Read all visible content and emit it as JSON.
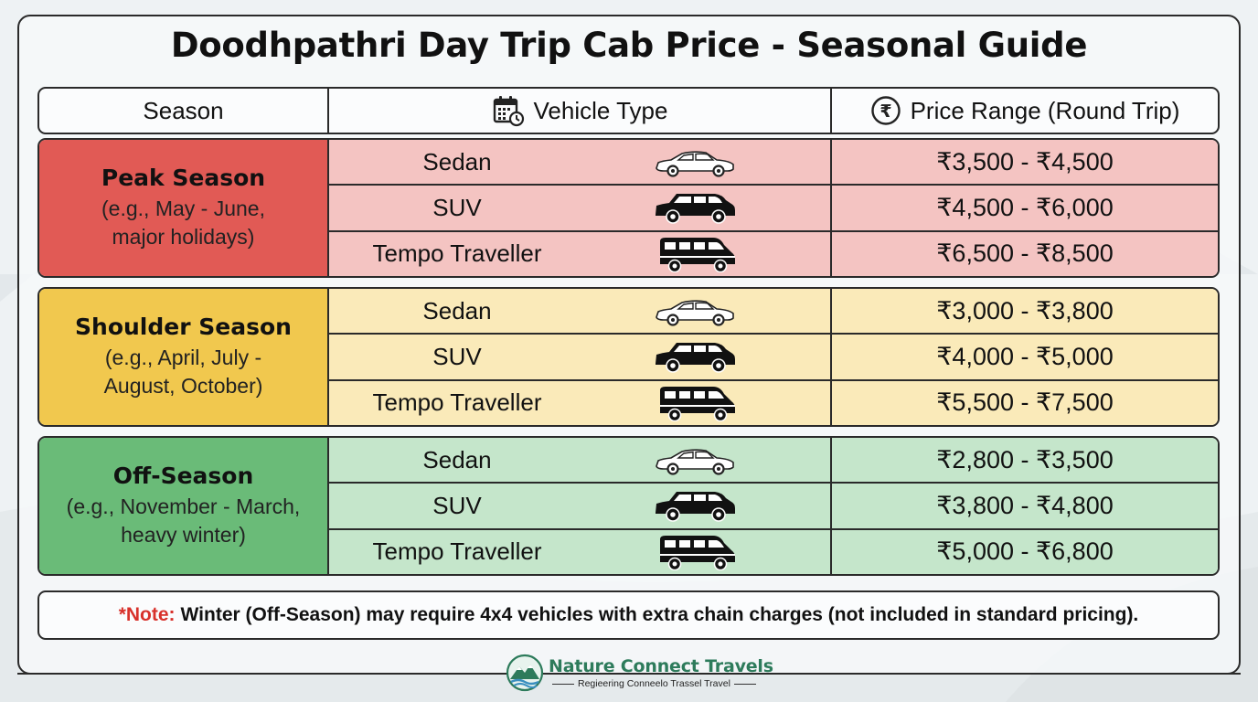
{
  "title": "Doodhpathri Day Trip Cab Price - Seasonal Guide",
  "header": {
    "season": "Season",
    "vehicle_type": "Vehicle Type",
    "vehicle_icon": "calendar-icon",
    "price_range": "Price Range (Round Trip)",
    "price_icon": "rupee-icon",
    "price_icon_glyph": "₹"
  },
  "seasons": [
    {
      "name": "Peak Season",
      "desc_line1": "(e.g., May - June,",
      "desc_line2": "major holidays)",
      "color": "#e15a55",
      "row_color": "#f4c4c2",
      "rows": [
        {
          "vehicle": "Sedan",
          "icon": "sedan-icon",
          "price": "₹3,500 - ₹4,500"
        },
        {
          "vehicle": "SUV",
          "icon": "suv-icon",
          "price": "₹4,500 - ₹6,000"
        },
        {
          "vehicle": "Tempo Traveller",
          "icon": "van-icon",
          "price": "₹6,500 - ₹8,500"
        }
      ]
    },
    {
      "name": "Shoulder Season",
      "desc_line1": "(e.g., April, July -",
      "desc_line2": "August, October)",
      "color": "#f1c84e",
      "row_color": "#faeab9",
      "rows": [
        {
          "vehicle": "Sedan",
          "icon": "sedan-icon",
          "price": "₹3,000 - ₹3,800"
        },
        {
          "vehicle": "SUV",
          "icon": "suv-icon",
          "price": "₹4,000 - ₹5,000"
        },
        {
          "vehicle": "Tempo Traveller",
          "icon": "van-icon",
          "price": "₹5,500 - ₹7,500"
        }
      ]
    },
    {
      "name": "Off-Season",
      "desc_line1": "(e.g., November - March,",
      "desc_line2": "heavy winter)",
      "color": "#6abb78",
      "row_color": "#c5e6cb",
      "rows": [
        {
          "vehicle": "Sedan",
          "icon": "sedan-icon",
          "price": "₹2,800 - ₹3,500"
        },
        {
          "vehicle": "SUV",
          "icon": "suv-icon",
          "price": "₹3,800 - ₹4,800"
        },
        {
          "vehicle": "Tempo Traveller",
          "icon": "van-icon",
          "price": "₹5,000 - ₹6,800"
        }
      ]
    }
  ],
  "note": {
    "label": "*Note:",
    "text": "Winter (Off-Season) may require 4x4 vehicles with extra chain charges (not included in standard pricing)."
  },
  "brand": {
    "name": "Nature Connect Travels",
    "tagline": "Regieering Conneelo Trassel Travel",
    "logo_icon": "mountain-logo-icon",
    "color": "#2d7b5b"
  }
}
